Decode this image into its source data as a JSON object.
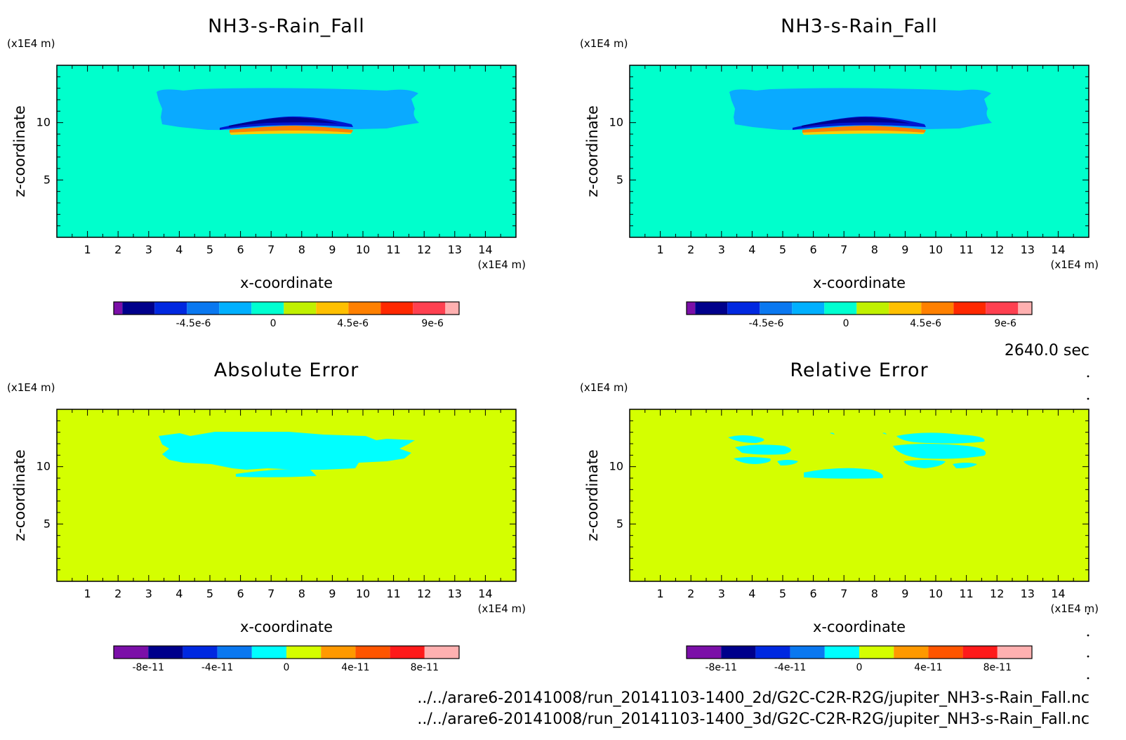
{
  "colors": {
    "scale_top": [
      "#7b0fa8",
      "#00008b",
      "#0028e0",
      "#0a78f0",
      "#00b0ff",
      "#00ffd0",
      "#c0f000",
      "#ffc000",
      "#ff8000",
      "#ff2800",
      "#ff4050",
      "#ffb0b0"
    ],
    "scale_bottom": [
      "#7b0fa8",
      "#00008b",
      "#0028e0",
      "#0a78f0",
      "#00ffff",
      "#d4ff00",
      "#ff9900",
      "#ff5500",
      "#ff1a1a",
      "#ffb0b0"
    ],
    "field_bg": "#00ffcc",
    "field_cloud": "#0aaaff",
    "field_dark": "#0018d0",
    "field_navy": "#000090",
    "field_orange": "#ff8000",
    "field_yellow": "#ffd000",
    "error_bg": "#d4ff00",
    "error_patch": "#00ffff"
  },
  "time_label": "2640.0 sec",
  "footer": [
    "../../arare6-20141008/run_20141103-1400_2d/G2C-C2R-R2G/jupiter_NH3-s-Rain_Fall.nc",
    "../../arare6-20141008/run_20141103-1400_3d/G2C-C2R-R2G/jupiter_NH3-s-Rain_Fall.nc"
  ],
  "chart_data": [
    {
      "type": "heatmap",
      "title": "NH3-s-Rain_Fall",
      "xlabel": "x-coordinate",
      "ylabel": "z-coordinate",
      "x_unit": "(x1E4 m)",
      "y_unit": "(x1E4 m)",
      "xlim": [
        0,
        15
      ],
      "ylim": [
        0,
        15
      ],
      "x_ticks": [
        "1",
        "2",
        "3",
        "4",
        "5",
        "6",
        "7",
        "8",
        "9",
        "10",
        "11",
        "12",
        "13",
        "14"
      ],
      "y_ticks": [
        "5",
        "10"
      ],
      "colorbar_labels": [
        "-4.5e-6",
        "0",
        "4.5e-6",
        "9e-6"
      ],
      "colorbar_range": [
        -9e-06,
        1.05e-05
      ]
    },
    {
      "type": "heatmap",
      "title": "NH3-s-Rain_Fall",
      "xlabel": "x-coordinate",
      "ylabel": "z-coordinate",
      "x_unit": "(x1E4 m)",
      "y_unit": "(x1E4 m)",
      "xlim": [
        0,
        15
      ],
      "ylim": [
        0,
        15
      ],
      "x_ticks": [
        "1",
        "2",
        "3",
        "4",
        "5",
        "6",
        "7",
        "8",
        "9",
        "10",
        "11",
        "12",
        "13",
        "14"
      ],
      "y_ticks": [
        "5",
        "10"
      ],
      "colorbar_labels": [
        "-4.5e-6",
        "0",
        "4.5e-6",
        "9e-6"
      ],
      "colorbar_range": [
        -9e-06,
        1.05e-05
      ]
    },
    {
      "type": "heatmap",
      "title": "Absolute Error",
      "xlabel": "x-coordinate",
      "ylabel": "z-coordinate",
      "x_unit": "(x1E4 m)",
      "y_unit": "(x1E4 m)",
      "xlim": [
        0,
        15
      ],
      "ylim": [
        0,
        15
      ],
      "x_ticks": [
        "1",
        "2",
        "3",
        "4",
        "5",
        "6",
        "7",
        "8",
        "9",
        "10",
        "11",
        "12",
        "13",
        "14"
      ],
      "y_ticks": [
        "5",
        "10"
      ],
      "colorbar_labels": [
        "-8e-11",
        "-4e-11",
        "0",
        "4e-11",
        "8e-11"
      ],
      "colorbar_range": [
        -1e-10,
        1e-10
      ]
    },
    {
      "type": "heatmap",
      "title": "Relative Error",
      "xlabel": "x-coordinate",
      "ylabel": "z-coordinate",
      "x_unit": "(x1E4 m)",
      "y_unit": "(x1E4 m)",
      "xlim": [
        0,
        15
      ],
      "ylim": [
        0,
        15
      ],
      "x_ticks": [
        "1",
        "2",
        "3",
        "4",
        "5",
        "6",
        "7",
        "8",
        "9",
        "10",
        "11",
        "12",
        "13",
        "14"
      ],
      "y_ticks": [
        "5",
        "10"
      ],
      "colorbar_labels": [
        "-8e-11",
        "-4e-11",
        "0",
        "4e-11",
        "8e-11"
      ],
      "colorbar_range": [
        -1e-10,
        1e-10
      ]
    }
  ]
}
